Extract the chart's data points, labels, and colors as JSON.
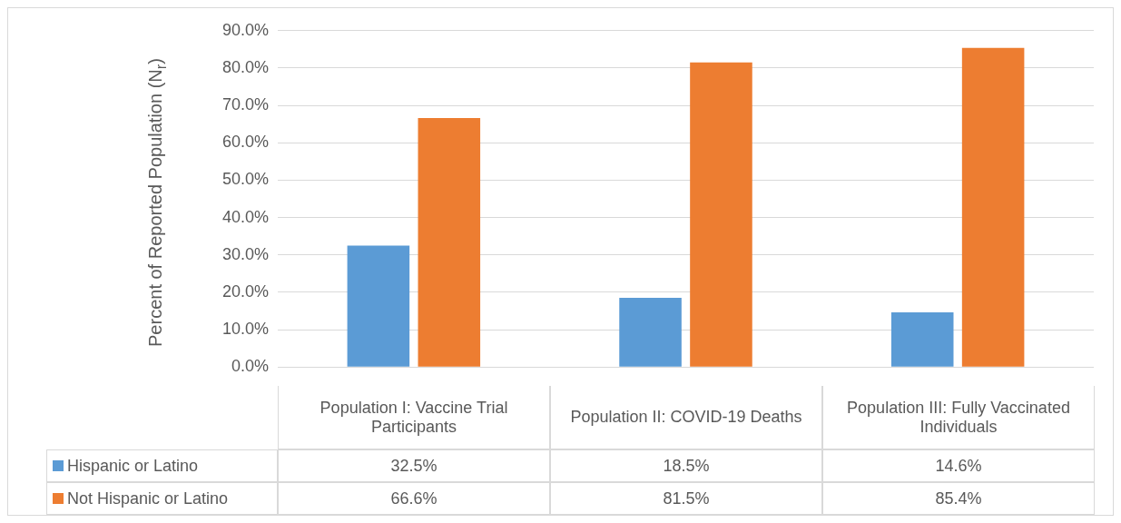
{
  "chart_data": {
    "type": "bar",
    "ylabel": "Percent of Reported Population (N$_{r}$)",
    "categories": [
      "Population I: Vaccine Trial Participants",
      "Population II: COVID-19 Deaths",
      "Population III: Fully Vaccinated Individuals"
    ],
    "series": [
      {
        "name": "Hispanic or Latino",
        "color": "#5b9bd5",
        "values": [
          32.5,
          18.5,
          14.6
        ],
        "value_labels": [
          "32.5%",
          "18.5%",
          "14.6%"
        ]
      },
      {
        "name": "Not Hispanic or Latino",
        "color": "#ed7d31",
        "values": [
          66.6,
          81.5,
          85.4
        ],
        "value_labels": [
          "66.6%",
          "81.5%",
          "85.4%"
        ]
      }
    ],
    "ylim": [
      0,
      90
    ],
    "yticks": [
      {
        "value": 0,
        "label": "0.0%"
      },
      {
        "value": 10,
        "label": "10.0%"
      },
      {
        "value": 20,
        "label": "20.0%"
      },
      {
        "value": 30,
        "label": "30.0%"
      },
      {
        "value": 40,
        "label": "40.0%"
      },
      {
        "value": 50,
        "label": "50.0%"
      },
      {
        "value": 60,
        "label": "60.0%"
      },
      {
        "value": 70,
        "label": "70.0%"
      },
      {
        "value": 80,
        "label": "80.0%"
      },
      {
        "value": 90,
        "label": "90.0%"
      }
    ],
    "grid": "y",
    "legend": "bottom"
  }
}
